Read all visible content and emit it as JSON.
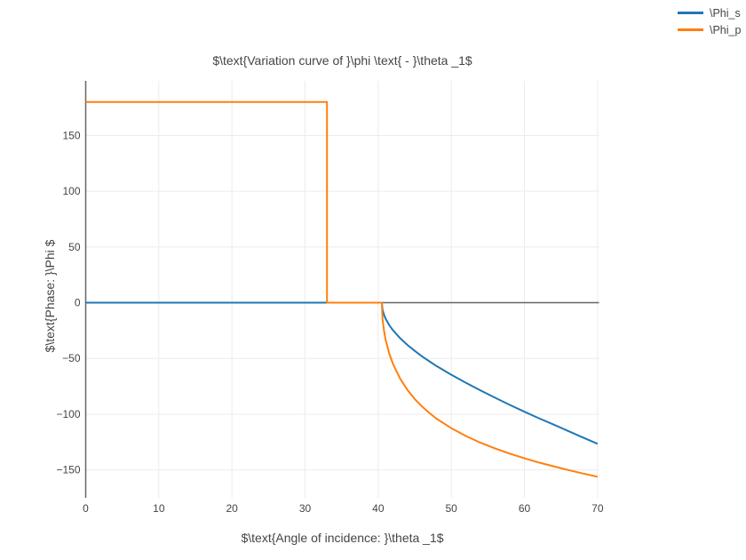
{
  "chart_data": {
    "type": "line",
    "title": "$\\text{Variation curve of }\\phi \\text{ - }\\theta _1$",
    "xlabel": "$\\text{Angle of incidence: }\\theta _1$",
    "ylabel": "$\\text{Phase: }\\Phi $",
    "xlim": [
      0,
      70.2
    ],
    "ylim": [
      -175,
      199
    ],
    "xticks": [
      0,
      10,
      20,
      30,
      40,
      50,
      60,
      70
    ],
    "yticks": [
      -150,
      -100,
      -50,
      0,
      50,
      100,
      150
    ],
    "grid": true,
    "legend_position": "top-right",
    "colors": {
      "grid": "#ececec",
      "zeroline": "#666666",
      "tick_text": "#444444",
      "background": "#ffffff"
    },
    "series": [
      {
        "name": "\\Phi_s",
        "color": "#1f77b4",
        "points": [
          [
            0,
            0
          ],
          [
            33,
            0
          ],
          [
            40.49,
            0
          ],
          [
            40.6,
            -6.5
          ],
          [
            40.8,
            -10.7
          ],
          [
            41,
            -14.2
          ],
          [
            41.5,
            -20
          ],
          [
            42,
            -24.5
          ],
          [
            43,
            -31.8
          ],
          [
            44,
            -37.9
          ],
          [
            45,
            -43.2
          ],
          [
            46,
            -48.1
          ],
          [
            47,
            -52.6
          ],
          [
            48,
            -56.9
          ],
          [
            50,
            -64.6
          ],
          [
            52,
            -71.8
          ],
          [
            54,
            -78.7
          ],
          [
            56,
            -85.3
          ],
          [
            58,
            -91.7
          ],
          [
            60,
            -97.8
          ],
          [
            62,
            -103.7
          ],
          [
            64,
            -109.4
          ],
          [
            66,
            -115.1
          ],
          [
            68,
            -120.9
          ],
          [
            70,
            -126.6
          ]
        ]
      },
      {
        "name": "\\Phi_p",
        "color": "#ff7f0e",
        "points": [
          [
            0,
            180
          ],
          [
            33,
            180
          ],
          [
            33,
            0
          ],
          [
            40.49,
            0
          ],
          [
            40.6,
            -15.3
          ],
          [
            40.8,
            -25
          ],
          [
            41,
            -32.9
          ],
          [
            41.5,
            -45.4
          ],
          [
            42,
            -54.5
          ],
          [
            43,
            -68
          ],
          [
            44,
            -78.3
          ],
          [
            45,
            -86.4
          ],
          [
            46,
            -93.1
          ],
          [
            47,
            -98.9
          ],
          [
            48,
            -104.1
          ],
          [
            50,
            -112.6
          ],
          [
            52,
            -119.6
          ],
          [
            54,
            -125.6
          ],
          [
            56,
            -130.8
          ],
          [
            58,
            -135.4
          ],
          [
            60,
            -139.6
          ],
          [
            62,
            -143.4
          ],
          [
            64,
            -146.8
          ],
          [
            66,
            -150.1
          ],
          [
            68,
            -153.2
          ],
          [
            70,
            -156.1
          ]
        ]
      }
    ]
  }
}
